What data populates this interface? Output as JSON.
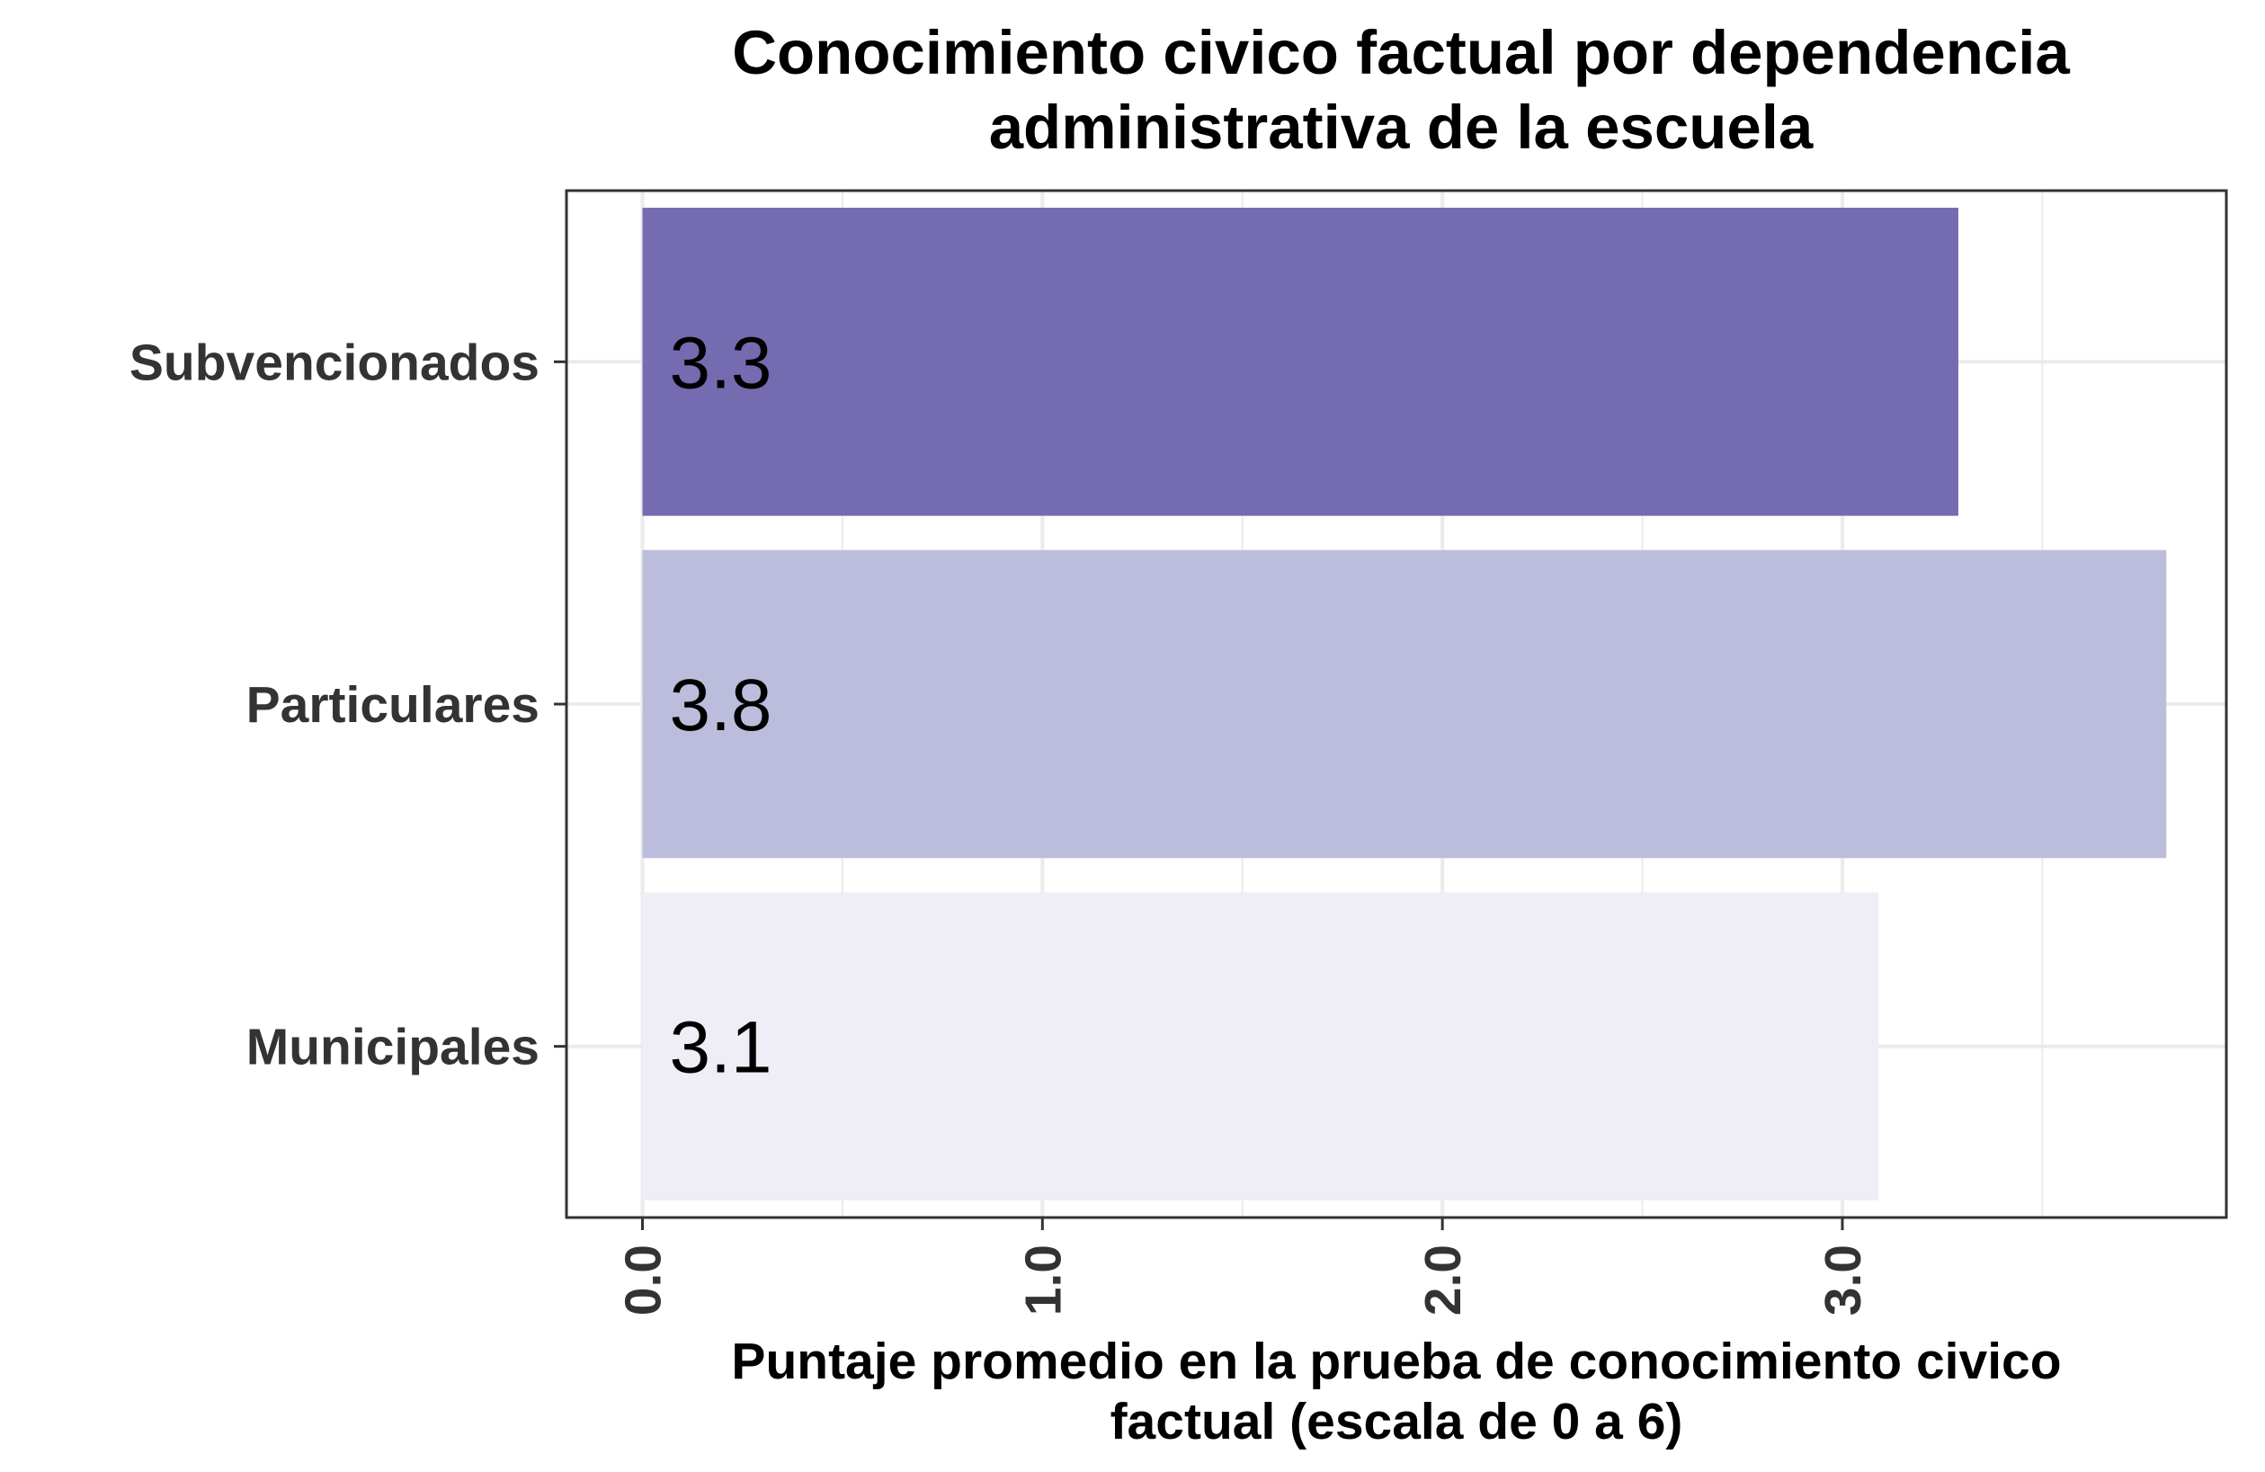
{
  "chart_data": {
    "type": "bar",
    "orientation": "horizontal",
    "title": [
      "Conocimiento civico factual por dependencia",
      "administrativa de la escuela"
    ],
    "xlabel": [
      "Puntaje promedio en la prueba de conocimiento civico",
      "factual (escala de 0 a 6)"
    ],
    "ylabel": "",
    "categories": [
      "Subvencionados",
      "Particulares",
      "Municipales"
    ],
    "values": [
      3.29,
      3.81,
      3.09
    ],
    "value_labels": [
      "3.3",
      "3.8",
      "3.1"
    ],
    "colors": [
      "#756bb1",
      "#bcbddc",
      "#efedf5"
    ],
    "xlim": [
      -0.19,
      3.96
    ],
    "x_ticks": [
      0,
      1,
      2,
      3
    ],
    "x_tick_labels": [
      "0.0",
      "1.0",
      "2.0",
      "3.0"
    ],
    "x_minor_ticks": [
      0.5,
      1.5,
      2.5,
      3.5
    ],
    "x_tick_label_rotation": 90,
    "grid": true,
    "legend": "none"
  }
}
